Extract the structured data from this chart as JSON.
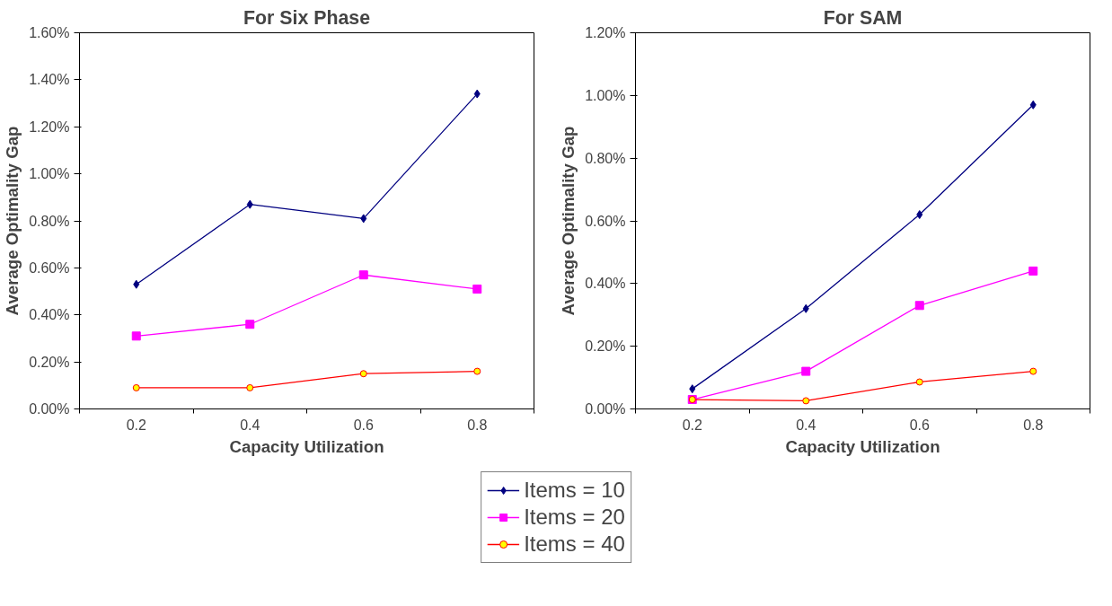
{
  "chart_data": [
    {
      "type": "line",
      "title": "For Six Phase",
      "xlabel": "Capacity Utilization",
      "ylabel": "Average Optimality Gap",
      "categories": [
        "0.2",
        "0.4",
        "0.6",
        "0.8"
      ],
      "ylim": [
        0,
        1.6
      ],
      "yticks": [
        {
          "value": 0,
          "label": "0.00%"
        },
        {
          "value": 0.2,
          "label": "0.20%"
        },
        {
          "value": 0.4,
          "label": "0.40%"
        },
        {
          "value": 0.6,
          "label": "0.60%"
        },
        {
          "value": 0.8,
          "label": "0.80%"
        },
        {
          "value": 1.0,
          "label": "1.00%"
        },
        {
          "value": 1.2,
          "label": "1.20%"
        },
        {
          "value": 1.4,
          "label": "1.40%"
        },
        {
          "value": 1.6,
          "label": "1.60%"
        }
      ],
      "grid": false,
      "legend": "bottom",
      "series": [
        {
          "name": "Items = 10",
          "color": "#000080",
          "marker": "diamond",
          "values": [
            0.53,
            0.87,
            0.81,
            1.34
          ]
        },
        {
          "name": "Items = 20",
          "color": "#ff00ff",
          "marker": "square",
          "values": [
            0.31,
            0.36,
            0.57,
            0.51
          ]
        },
        {
          "name": "Items = 40",
          "color": "#ff0000",
          "marker": "circle",
          "values": [
            0.09,
            0.09,
            0.15,
            0.16
          ]
        }
      ]
    },
    {
      "type": "line",
      "title": "For SAM",
      "xlabel": "Capacity Utilization",
      "ylabel": "Average Optimality Gap",
      "categories": [
        "0.2",
        "0.4",
        "0.6",
        "0.8"
      ],
      "ylim": [
        0,
        1.2
      ],
      "yticks": [
        {
          "value": 0,
          "label": "0.00%"
        },
        {
          "value": 0.2,
          "label": "0.20%"
        },
        {
          "value": 0.4,
          "label": "0.40%"
        },
        {
          "value": 0.6,
          "label": "0.60%"
        },
        {
          "value": 0.8,
          "label": "0.80%"
        },
        {
          "value": 1.0,
          "label": "1.00%"
        },
        {
          "value": 1.2,
          "label": "1.20%"
        }
      ],
      "grid": false,
      "series": [
        {
          "color": "#000080",
          "marker": "diamond",
          "values": [
            0.064,
            0.32,
            0.62,
            0.97
          ]
        },
        {
          "color": "#ff00ff",
          "marker": "square",
          "values": [
            0.03,
            0.12,
            0.33,
            0.44
          ]
        },
        {
          "color": "#ff0000",
          "marker": "circle",
          "values": [
            0.03,
            0.026,
            0.086,
            0.12
          ]
        }
      ]
    }
  ]
}
